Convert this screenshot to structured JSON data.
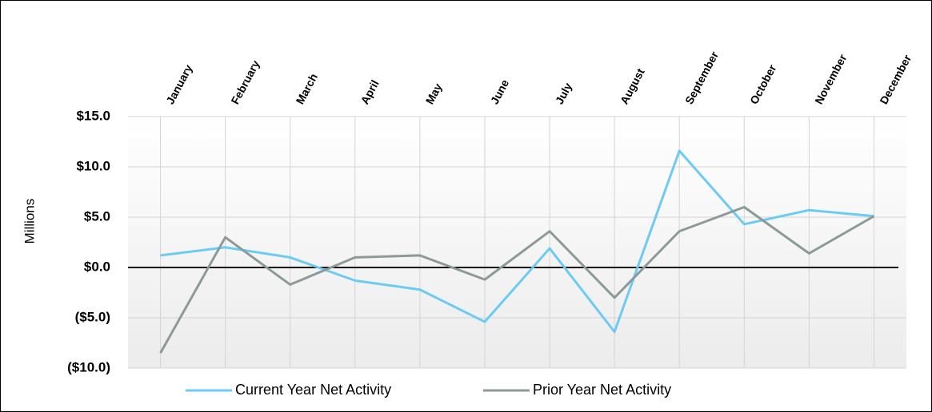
{
  "chart_data": {
    "type": "line",
    "y_label": "Millions",
    "categories": [
      "January",
      "February",
      "March",
      "April",
      "May",
      "June",
      "July",
      "August",
      "September",
      "October",
      "November",
      "December"
    ],
    "series": [
      {
        "name": "Current Year Net Activity",
        "color": "#6ccbf2",
        "values": [
          1.2,
          2.0,
          1.0,
          -1.3,
          -2.2,
          -5.4,
          1.9,
          -6.4,
          11.6,
          4.3,
          5.7,
          5.1
        ]
      },
      {
        "name": "Prior Year Net Activity",
        "color": "#8c9a98",
        "values": [
          -8.5,
          3.0,
          -1.7,
          1.0,
          1.2,
          -1.2,
          3.6,
          -3.0,
          3.6,
          6.0,
          1.4,
          5.1
        ]
      }
    ],
    "ylim": [
      -10,
      15
    ],
    "yticks": [
      {
        "value": -10,
        "label": "($10.0)"
      },
      {
        "value": -5,
        "label": "($5.0)"
      },
      {
        "value": 0,
        "label": "$0.0"
      },
      {
        "value": 5,
        "label": "$5.0"
      },
      {
        "value": 10,
        "label": "$10.0"
      },
      {
        "value": 15,
        "label": "$15.0"
      }
    ],
    "grid": true,
    "legend": "bottom"
  }
}
